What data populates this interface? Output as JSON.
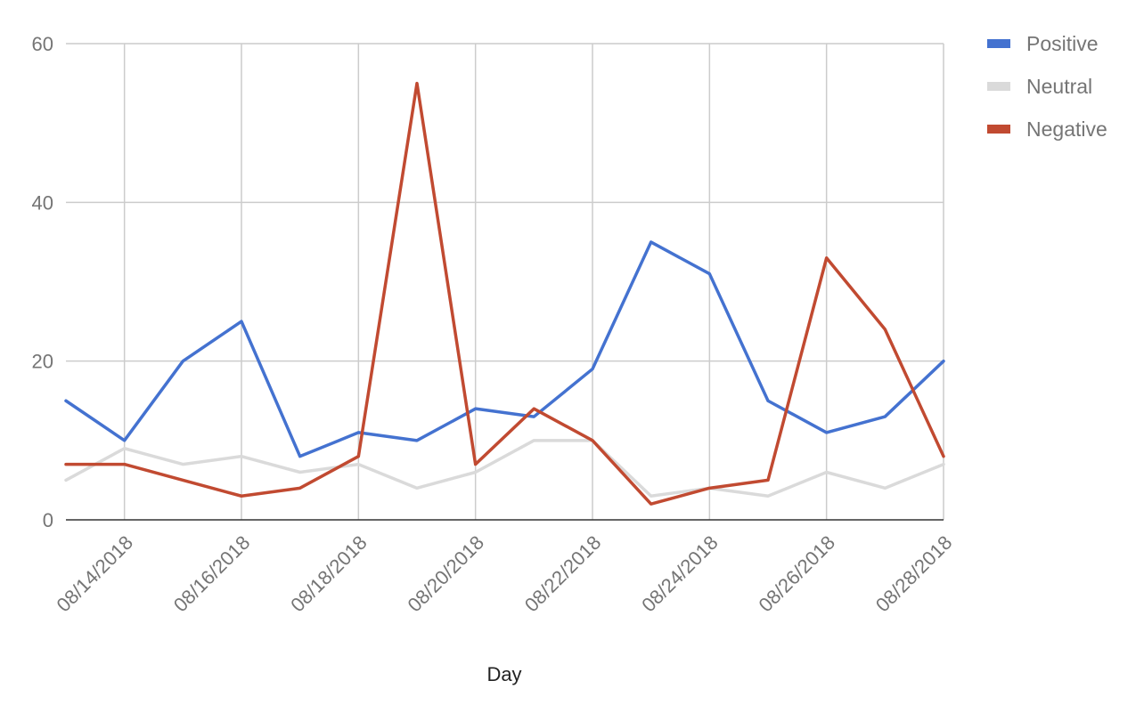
{
  "chart_data": {
    "type": "line",
    "title": "",
    "xlabel": "Day",
    "ylabel": "",
    "ylim": [
      0,
      60
    ],
    "yticks": [
      0,
      20,
      40,
      60
    ],
    "grid": true,
    "legend_position": "right",
    "x": [
      "08/13/2018",
      "08/14/2018",
      "08/15/2018",
      "08/16/2018",
      "08/17/2018",
      "08/18/2018",
      "08/19/2018",
      "08/20/2018",
      "08/21/2018",
      "08/22/2018",
      "08/23/2018",
      "08/24/2018",
      "08/25/2018",
      "08/26/2018",
      "08/27/2018",
      "08/28/2018"
    ],
    "x_tick_labels": [
      "08/14/2018",
      "08/16/2018",
      "08/18/2018",
      "08/20/2018",
      "08/22/2018",
      "08/24/2018",
      "08/26/2018",
      "08/28/2018"
    ],
    "series": [
      {
        "name": "Positive",
        "color": "#4472d0",
        "values": [
          15,
          10,
          20,
          25,
          8,
          11,
          10,
          14,
          13,
          19,
          35,
          31,
          15,
          11,
          13,
          20
        ]
      },
      {
        "name": "Neutral",
        "color": "#dadada",
        "values": [
          5,
          9,
          7,
          8,
          6,
          7,
          4,
          6,
          10,
          10,
          3,
          4,
          3,
          6,
          4,
          7
        ]
      },
      {
        "name": "Negative",
        "color": "#c14a31",
        "values": [
          7,
          7,
          5,
          3,
          4,
          8,
          55,
          7,
          14,
          10,
          2,
          4,
          5,
          33,
          24,
          8
        ]
      }
    ]
  }
}
